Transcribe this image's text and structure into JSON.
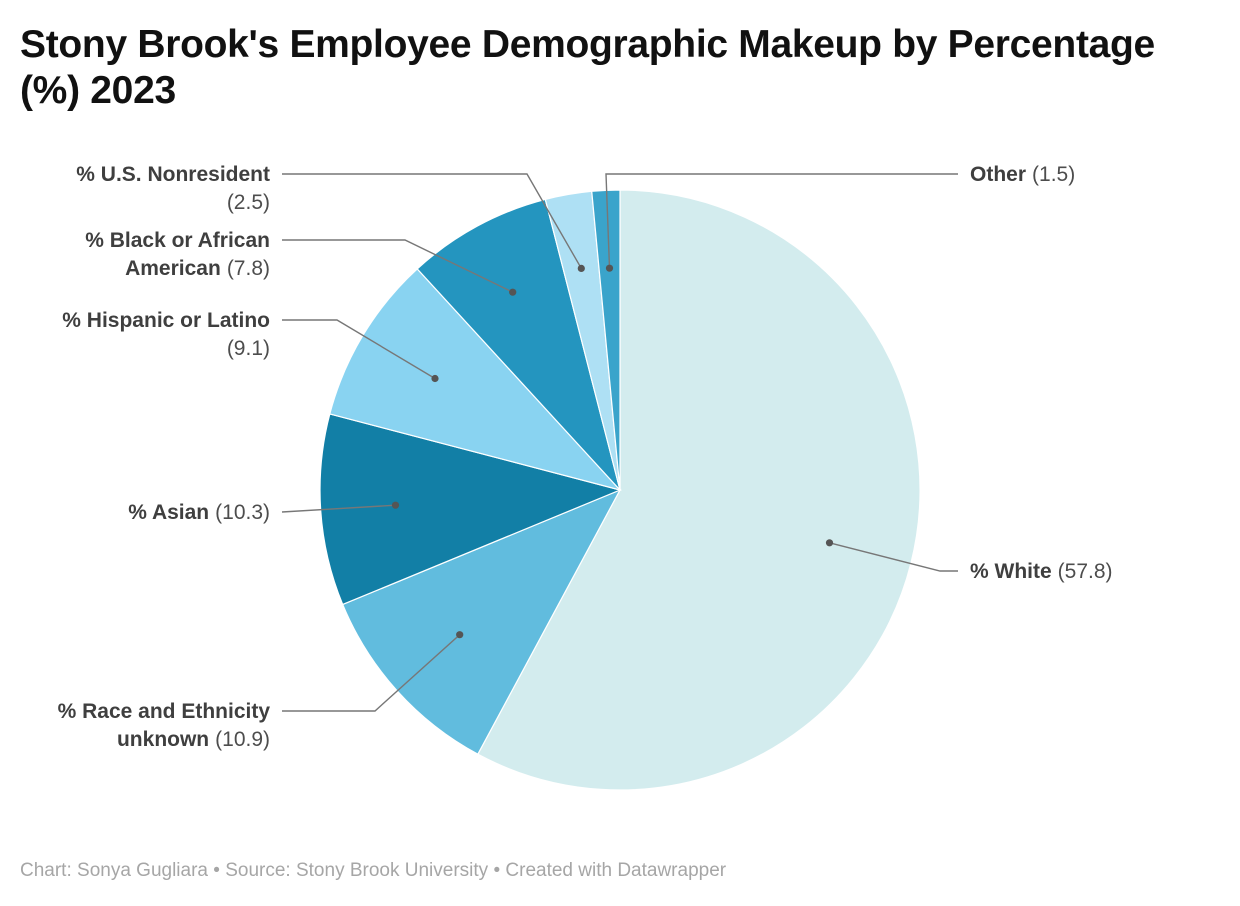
{
  "title": "Stony Brook's Employee Demographic Makeup by Percentage (%) 2023",
  "footer": {
    "byline": "Chart: Sonya Gugliara",
    "separator": "•",
    "source": "Source: Stony Brook University",
    "credit": "Created with Datawrapper"
  },
  "chart_data": {
    "type": "pie",
    "title": "Stony Brook's Employee Demographic Makeup by Percentage (%) 2023",
    "slices": [
      {
        "label": "% White",
        "label_lines": [
          "% White"
        ],
        "value": 57.8,
        "value_text": "(57.8)",
        "color": "#d3ecee"
      },
      {
        "label": "% Race and Ethnicity unknown",
        "label_lines": [
          "% Race and Ethnicity",
          "unknown"
        ],
        "value": 10.9,
        "value_text": "(10.9)",
        "color": "#61bcde"
      },
      {
        "label": "% Asian",
        "label_lines": [
          "% Asian"
        ],
        "value": 10.3,
        "value_text": "(10.3)",
        "color": "#127fa6"
      },
      {
        "label": "% Hispanic or Latino",
        "label_lines": [
          "% Hispanic or Latino"
        ],
        "value": 9.1,
        "value_text": "(9.1)",
        "color": "#89d3f1"
      },
      {
        "label": "% Black or African American",
        "label_lines": [
          "% Black or African",
          "American"
        ],
        "value": 7.8,
        "value_text": "(7.8)",
        "color": "#2495bf"
      },
      {
        "label": "% U.S. Nonresident",
        "label_lines": [
          "% U.S. Nonresident"
        ],
        "value": 2.5,
        "value_text": "(2.5)",
        "color": "#aee0f4"
      },
      {
        "label": "Other",
        "label_lines": [
          "Other"
        ],
        "value": 1.5,
        "value_text": "(1.5)",
        "color": "#3aa4cb"
      }
    ],
    "start_angle_deg": 0,
    "direction": "clockwise",
    "legend": "none"
  }
}
